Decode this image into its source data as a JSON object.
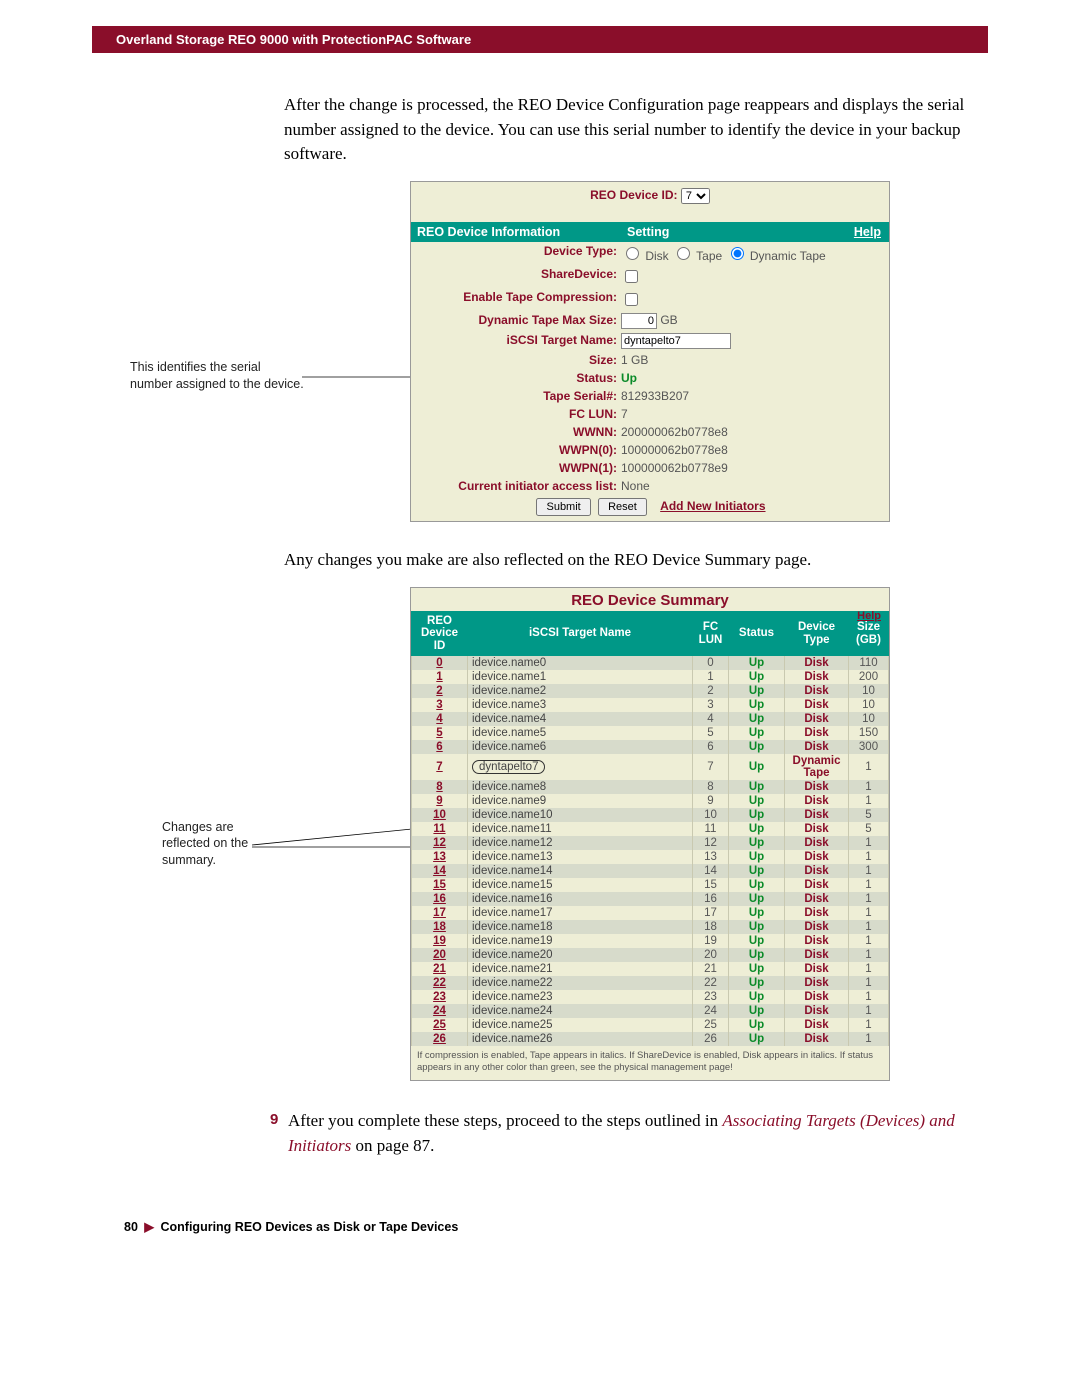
{
  "header": {
    "title": "Overland Storage REO 9000 with ProtectionPAC Software"
  },
  "para1": "After the change is processed, the REO Device Configuration page reappears and displays the serial number assigned to the device. You can use this serial number to identify the device in your backup software.",
  "callout1": "This identifies the serial number assigned to the device.",
  "device_panel": {
    "id_label": "REO Device ID:",
    "id_value": "7",
    "hdr_info": "REO Device Information",
    "hdr_setting": "Setting",
    "hdr_help": "Help",
    "rows": {
      "device_type_lbl": "Device Type:",
      "disk": "Disk",
      "tape": "Tape",
      "dyntape": "Dynamic Tape",
      "share_lbl": "ShareDevice:",
      "comp_lbl": "Enable Tape Compression:",
      "maxsize_lbl": "Dynamic Tape Max Size:",
      "maxsize_val": "0",
      "gb": "GB",
      "target_lbl": "iSCSI Target Name:",
      "target_val": "dyntapelto7",
      "size_lbl": "Size:",
      "size_val": "1 GB",
      "status_lbl": "Status:",
      "status_val": "Up",
      "serial_lbl": "Tape Serial#:",
      "serial_val": "812933B207",
      "fclun_lbl": "FC LUN:",
      "fclun_val": "7",
      "wwnn_lbl": "WWNN:",
      "wwnn_val": "200000062b0778e8",
      "wwpn0_lbl": "WWPN(0):",
      "wwpn0_val": "100000062b0778e8",
      "wwpn1_lbl": "WWPN(1):",
      "wwpn1_val": "100000062b0778e9",
      "init_lbl": "Current initiator access list:",
      "init_val": "None"
    },
    "submit": "Submit",
    "reset": "Reset",
    "add_init": "Add New Initiators"
  },
  "para2": "Any changes you make are also reflected on the REO Device Summary page.",
  "callout2": "Changes are reflected on the summary.",
  "summary": {
    "title": "REO Device Summary",
    "help": "Help",
    "cols": {
      "id": "REO Device ID",
      "target": "iSCSI Target Name",
      "lun": "FC LUN",
      "status": "Status",
      "dtype": "Device Type",
      "size": "Size (GB)"
    },
    "rows": [
      {
        "id": "0",
        "target": "idevice.name0",
        "lun": "0",
        "status": "Up",
        "dtype": "Disk",
        "size": "110"
      },
      {
        "id": "1",
        "target": "idevice.name1",
        "lun": "1",
        "status": "Up",
        "dtype": "Disk",
        "size": "200"
      },
      {
        "id": "2",
        "target": "idevice.name2",
        "lun": "2",
        "status": "Up",
        "dtype": "Disk",
        "size": "10"
      },
      {
        "id": "3",
        "target": "idevice.name3",
        "lun": "3",
        "status": "Up",
        "dtype": "Disk",
        "size": "10"
      },
      {
        "id": "4",
        "target": "idevice.name4",
        "lun": "4",
        "status": "Up",
        "dtype": "Disk",
        "size": "10"
      },
      {
        "id": "5",
        "target": "idevice.name5",
        "lun": "5",
        "status": "Up",
        "dtype": "Disk",
        "size": "150"
      },
      {
        "id": "6",
        "target": "idevice.name6",
        "lun": "6",
        "status": "Up",
        "dtype": "Disk",
        "size": "300"
      },
      {
        "id": "7",
        "target": "dyntapelto7",
        "lun": "7",
        "status": "Up",
        "dtype": "Dynamic Tape",
        "size": "1",
        "hl": true
      },
      {
        "id": "8",
        "target": "idevice.name8",
        "lun": "8",
        "status": "Up",
        "dtype": "Disk",
        "size": "1",
        "lead": true
      },
      {
        "id": "9",
        "target": "idevice.name9",
        "lun": "9",
        "status": "Up",
        "dtype": "Disk",
        "size": "1",
        "lead": true
      },
      {
        "id": "10",
        "target": "idevice.name10",
        "lun": "10",
        "status": "Up",
        "dtype": "Disk",
        "size": "5"
      },
      {
        "id": "11",
        "target": "idevice.name11",
        "lun": "11",
        "status": "Up",
        "dtype": "Disk",
        "size": "5"
      },
      {
        "id": "12",
        "target": "idevice.name12",
        "lun": "12",
        "status": "Up",
        "dtype": "Disk",
        "size": "1"
      },
      {
        "id": "13",
        "target": "idevice.name13",
        "lun": "13",
        "status": "Up",
        "dtype": "Disk",
        "size": "1"
      },
      {
        "id": "14",
        "target": "idevice.name14",
        "lun": "14",
        "status": "Up",
        "dtype": "Disk",
        "size": "1"
      },
      {
        "id": "15",
        "target": "idevice.name15",
        "lun": "15",
        "status": "Up",
        "dtype": "Disk",
        "size": "1"
      },
      {
        "id": "16",
        "target": "idevice.name16",
        "lun": "16",
        "status": "Up",
        "dtype": "Disk",
        "size": "1"
      },
      {
        "id": "17",
        "target": "idevice.name17",
        "lun": "17",
        "status": "Up",
        "dtype": "Disk",
        "size": "1"
      },
      {
        "id": "18",
        "target": "idevice.name18",
        "lun": "18",
        "status": "Up",
        "dtype": "Disk",
        "size": "1"
      },
      {
        "id": "19",
        "target": "idevice.name19",
        "lun": "19",
        "status": "Up",
        "dtype": "Disk",
        "size": "1"
      },
      {
        "id": "20",
        "target": "idevice.name20",
        "lun": "20",
        "status": "Up",
        "dtype": "Disk",
        "size": "1"
      },
      {
        "id": "21",
        "target": "idevice.name21",
        "lun": "21",
        "status": "Up",
        "dtype": "Disk",
        "size": "1"
      },
      {
        "id": "22",
        "target": "idevice.name22",
        "lun": "22",
        "status": "Up",
        "dtype": "Disk",
        "size": "1"
      },
      {
        "id": "23",
        "target": "idevice.name23",
        "lun": "23",
        "status": "Up",
        "dtype": "Disk",
        "size": "1"
      },
      {
        "id": "24",
        "target": "idevice.name24",
        "lun": "24",
        "status": "Up",
        "dtype": "Disk",
        "size": "1"
      },
      {
        "id": "25",
        "target": "idevice.name25",
        "lun": "25",
        "status": "Up",
        "dtype": "Disk",
        "size": "1"
      },
      {
        "id": "26",
        "target": "idevice.name26",
        "lun": "26",
        "status": "Up",
        "dtype": "Disk",
        "size": "1"
      }
    ],
    "footnote": "If compression is enabled, Tape appears in italics. If ShareDevice is enabled, Disk appears in italics. If status appears in any other color than green, see the physical management page!"
  },
  "step": {
    "num": "9",
    "text_a": "After you complete these steps, proceed to the steps outlined in ",
    "text_link": "Associating Targets (Devices) and Initiators",
    "text_b": " on page 87."
  },
  "footer": {
    "page": "80",
    "section": "Configuring REO Devices as Disk or Tape Devices"
  },
  "colors": {
    "brand": "#8a0e2a",
    "teal": "#009887",
    "panel_bg": "#eeeed6",
    "row_alt": "#d7dbcb",
    "green": "#0a8a28"
  }
}
